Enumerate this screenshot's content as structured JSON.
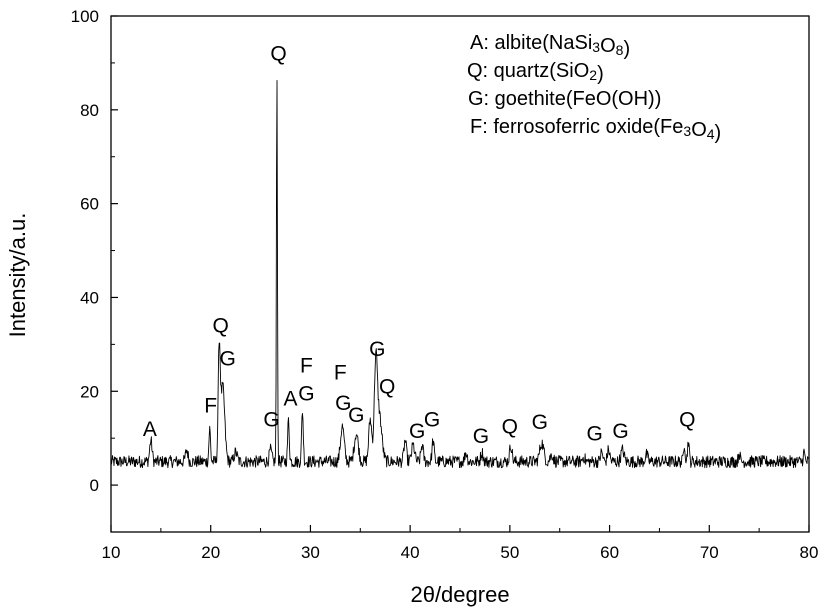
{
  "chart_data": {
    "type": "line",
    "xlabel_prefix": "2",
    "xlabel_symbol": "θ",
    "xlabel_suffix": "/degree",
    "ylabel": "Intensity/a.u.",
    "xlim": [
      10,
      80
    ],
    "ylim": [
      -10,
      100
    ],
    "xticks": [
      10,
      20,
      30,
      40,
      50,
      60,
      70,
      80
    ],
    "yticks": [
      0,
      20,
      40,
      60,
      80,
      100
    ],
    "grid": false,
    "legend_position": "top-right",
    "legend": [
      {
        "runs": [
          {
            "t": "A: albite(NaSi"
          },
          {
            "t": "3",
            "sub": true
          },
          {
            "t": "O"
          },
          {
            "t": "8",
            "sub": true
          },
          {
            "t": ")"
          }
        ]
      },
      {
        "runs": [
          {
            "t": "Q: quartz(SiO"
          },
          {
            "t": "2",
            "sub": true
          },
          {
            "t": ")"
          }
        ]
      },
      {
        "runs": [
          {
            "t": "G: goethite(FeO(OH))"
          }
        ]
      },
      {
        "runs": [
          {
            "t": "F: ferrosoferric oxide(Fe"
          },
          {
            "t": "3",
            "sub": true
          },
          {
            "t": "O"
          },
          {
            "t": "4",
            "sub": true
          },
          {
            "t": ")"
          }
        ]
      }
    ],
    "baseline": 5,
    "noise_amplitude": 1.3,
    "peaks": [
      {
        "x": 14.0,
        "y": 9.5,
        "w": 0.12
      },
      {
        "x": 17.6,
        "y": 7.5,
        "w": 0.12
      },
      {
        "x": 19.9,
        "y": 12,
        "w": 0.08
      },
      {
        "x": 20.85,
        "y": 28,
        "w": 0.1
      },
      {
        "x": 21.2,
        "y": 21,
        "w": 0.2
      },
      {
        "x": 22.5,
        "y": 7,
        "w": 0.15
      },
      {
        "x": 26.0,
        "y": 7.5,
        "w": 0.12
      },
      {
        "x": 26.64,
        "y": 88,
        "w": 0.05
      },
      {
        "x": 27.8,
        "y": 14,
        "w": 0.08
      },
      {
        "x": 29.2,
        "y": 16,
        "w": 0.08
      },
      {
        "x": 33.2,
        "y": 12.5,
        "w": 0.18
      },
      {
        "x": 34.6,
        "y": 11,
        "w": 0.2
      },
      {
        "x": 36.0,
        "y": 14,
        "w": 0.15
      },
      {
        "x": 36.55,
        "y": 24.5,
        "w": 0.15
      },
      {
        "x": 36.9,
        "y": 15,
        "w": 0.25
      },
      {
        "x": 39.5,
        "y": 9.5,
        "w": 0.12
      },
      {
        "x": 40.3,
        "y": 8.5,
        "w": 0.15
      },
      {
        "x": 41.2,
        "y": 8.5,
        "w": 0.12
      },
      {
        "x": 42.3,
        "y": 9.5,
        "w": 0.1
      },
      {
        "x": 45.6,
        "y": 7,
        "w": 0.12
      },
      {
        "x": 47.2,
        "y": 7,
        "w": 0.12
      },
      {
        "x": 50.1,
        "y": 8.5,
        "w": 0.12
      },
      {
        "x": 53.2,
        "y": 9,
        "w": 0.2
      },
      {
        "x": 54.2,
        "y": 6.5,
        "w": 0.15
      },
      {
        "x": 57.4,
        "y": 6,
        "w": 0.12
      },
      {
        "x": 59.2,
        "y": 7,
        "w": 0.12
      },
      {
        "x": 59.9,
        "y": 7.5,
        "w": 0.12
      },
      {
        "x": 61.3,
        "y": 7.5,
        "w": 0.15
      },
      {
        "x": 63.7,
        "y": 6.5,
        "w": 0.12
      },
      {
        "x": 67.5,
        "y": 9,
        "w": 0.08
      },
      {
        "x": 67.9,
        "y": 9.5,
        "w": 0.08
      },
      {
        "x": 73.0,
        "y": 7,
        "w": 0.08
      },
      {
        "x": 79.5,
        "y": 7,
        "w": 0.08
      }
    ],
    "peak_labels": [
      {
        "text": "A",
        "x": 13.9,
        "y": 10.5
      },
      {
        "text": "F",
        "x": 20.0,
        "y": 15.5
      },
      {
        "text": "Q",
        "x": 21.0,
        "y": 32.5
      },
      {
        "text": "G",
        "x": 21.7,
        "y": 25.5
      },
      {
        "text": "Q",
        "x": 26.8,
        "y": 90.5
      },
      {
        "text": "G",
        "x": 26.1,
        "y": 12.5
      },
      {
        "text": "A",
        "x": 28.0,
        "y": 17.0
      },
      {
        "text": "G",
        "x": 29.6,
        "y": 18.0
      },
      {
        "text": "F",
        "x": 29.6,
        "y": 24.0
      },
      {
        "text": "F",
        "x": 33.0,
        "y": 22.5
      },
      {
        "text": "G",
        "x": 33.3,
        "y": 16.0
      },
      {
        "text": "G",
        "x": 34.6,
        "y": 13.5
      },
      {
        "text": "G",
        "x": 36.7,
        "y": 27.5
      },
      {
        "text": "Q",
        "x": 37.7,
        "y": 19.5
      },
      {
        "text": "G",
        "x": 40.7,
        "y": 10.0
      },
      {
        "text": "G",
        "x": 42.2,
        "y": 12.5
      },
      {
        "text": "G",
        "x": 47.1,
        "y": 9.0
      },
      {
        "text": "Q",
        "x": 50.0,
        "y": 11.0
      },
      {
        "text": "G",
        "x": 53.0,
        "y": 12.0
      },
      {
        "text": "G",
        "x": 58.5,
        "y": 9.5
      },
      {
        "text": "G",
        "x": 61.1,
        "y": 10.0
      },
      {
        "text": "Q",
        "x": 67.8,
        "y": 12.5
      }
    ]
  }
}
